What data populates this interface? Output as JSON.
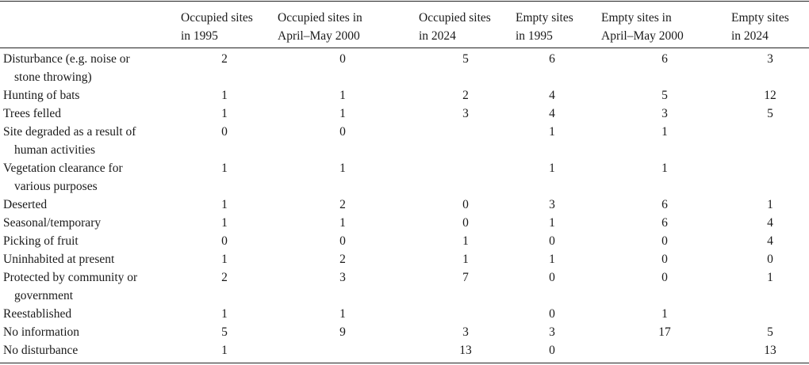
{
  "columns": [
    {
      "line1": "Occupied sites",
      "line2": "in 1995"
    },
    {
      "line1": "Occupied sites in",
      "line2": "April–May 2000"
    },
    {
      "line1": "Occupied sites",
      "line2": "in 2024"
    },
    {
      "line1": "Empty sites",
      "line2": "in 1995"
    },
    {
      "line1": "Empty sites in",
      "line2": "April–May 2000"
    },
    {
      "line1": "Empty sites",
      "line2": "in 2024"
    }
  ],
  "rows": [
    {
      "label1": "Disturbance (e.g. noise or",
      "label2": "stone throwing)",
      "values": [
        "2",
        "0",
        "5",
        "6",
        "6",
        "3"
      ]
    },
    {
      "label1": "Hunting of bats",
      "label2": "",
      "values": [
        "1",
        "1",
        "2",
        "4",
        "5",
        "12"
      ]
    },
    {
      "label1": "Trees felled",
      "label2": "",
      "values": [
        "1",
        "1",
        "3",
        "4",
        "3",
        "5"
      ]
    },
    {
      "label1": "Site degraded as a result of",
      "label2": "human activities",
      "values": [
        "0",
        "0",
        "",
        "1",
        "1",
        ""
      ]
    },
    {
      "label1": "Vegetation clearance for",
      "label2": "various purposes",
      "values": [
        "1",
        "1",
        "",
        "1",
        "1",
        ""
      ]
    },
    {
      "label1": "Deserted",
      "label2": "",
      "values": [
        "1",
        "2",
        "0",
        "3",
        "6",
        "1"
      ]
    },
    {
      "label1": "Seasonal/temporary",
      "label2": "",
      "values": [
        "1",
        "1",
        "0",
        "1",
        "6",
        "4"
      ]
    },
    {
      "label1": "Picking of fruit",
      "label2": "",
      "values": [
        "0",
        "0",
        "1",
        "0",
        "0",
        "4"
      ]
    },
    {
      "label1": "Uninhabited at present",
      "label2": "",
      "values": [
        "1",
        "2",
        "1",
        "1",
        "0",
        "0"
      ]
    },
    {
      "label1": "Protected by community or",
      "label2": "government",
      "values": [
        "2",
        "3",
        "7",
        "0",
        "0",
        "1"
      ]
    },
    {
      "label1": "Reestablished",
      "label2": "",
      "values": [
        "1",
        "1",
        "",
        "0",
        "1",
        ""
      ]
    },
    {
      "label1": "No information",
      "label2": "",
      "values": [
        "5",
        "9",
        "3",
        "3",
        "17",
        "5"
      ]
    },
    {
      "label1": "No disturbance",
      "label2": "",
      "values": [
        "1",
        "",
        "13",
        "0",
        "",
        "13"
      ]
    }
  ]
}
